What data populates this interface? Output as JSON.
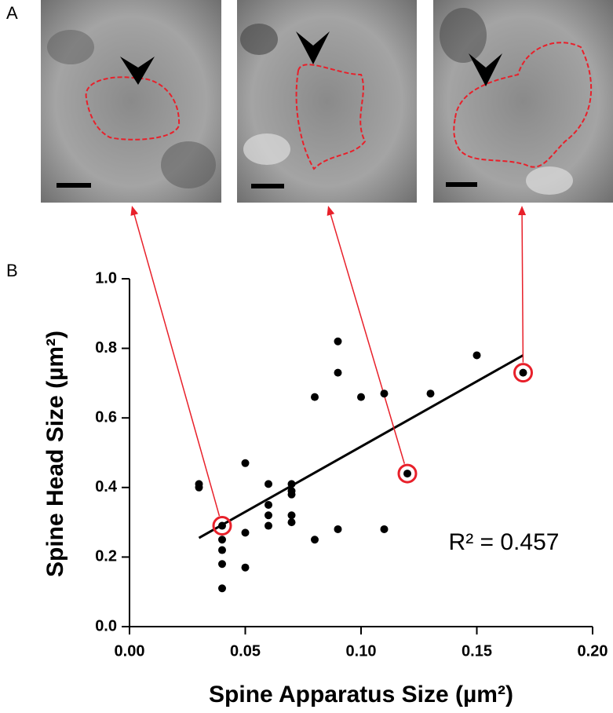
{
  "chart_data": {
    "type": "scatter",
    "panel_labels": [
      "A",
      "B"
    ],
    "xlabel": "Spine Apparatus Size (µm²)",
    "ylabel": "Spine Head Size (µm²)",
    "annotation": "R² = 0.457",
    "x": [
      0.03,
      0.03,
      0.04,
      0.04,
      0.04,
      0.04,
      0.04,
      0.05,
      0.05,
      0.05,
      0.06,
      0.06,
      0.06,
      0.06,
      0.07,
      0.07,
      0.07,
      0.07,
      0.07,
      0.08,
      0.08,
      0.09,
      0.09,
      0.09,
      0.1,
      0.11,
      0.11,
      0.12,
      0.13,
      0.15,
      0.17
    ],
    "values": [
      0.41,
      0.4,
      0.29,
      0.25,
      0.22,
      0.18,
      0.11,
      0.47,
      0.27,
      0.17,
      0.41,
      0.35,
      0.32,
      0.29,
      0.41,
      0.39,
      0.38,
      0.32,
      0.3,
      0.66,
      0.25,
      0.82,
      0.73,
      0.28,
      0.66,
      0.67,
      0.28,
      0.44,
      0.67,
      0.78,
      0.73
    ],
    "color": "#000000",
    "highlighted": [
      2,
      27,
      30
    ],
    "highlight_color": "#e8202a",
    "fit_line": {
      "x": [
        0.03,
        0.17
      ],
      "values": [
        0.255,
        0.78
      ]
    },
    "xlim": [
      0,
      0.2
    ],
    "ylim": [
      0,
      1
    ],
    "xticks": [
      {
        "value": 0,
        "label": "0.00"
      },
      0.05,
      {
        "value": 0.1,
        "label": "0.10"
      },
      0.15,
      {
        "value": 0.2,
        "label": "0.20"
      }
    ],
    "yticks": [
      {
        "value": 0,
        "label": "0.0"
      },
      0.2,
      0.4,
      0.6,
      0.8,
      {
        "value": 1,
        "label": "1.0"
      }
    ]
  }
}
